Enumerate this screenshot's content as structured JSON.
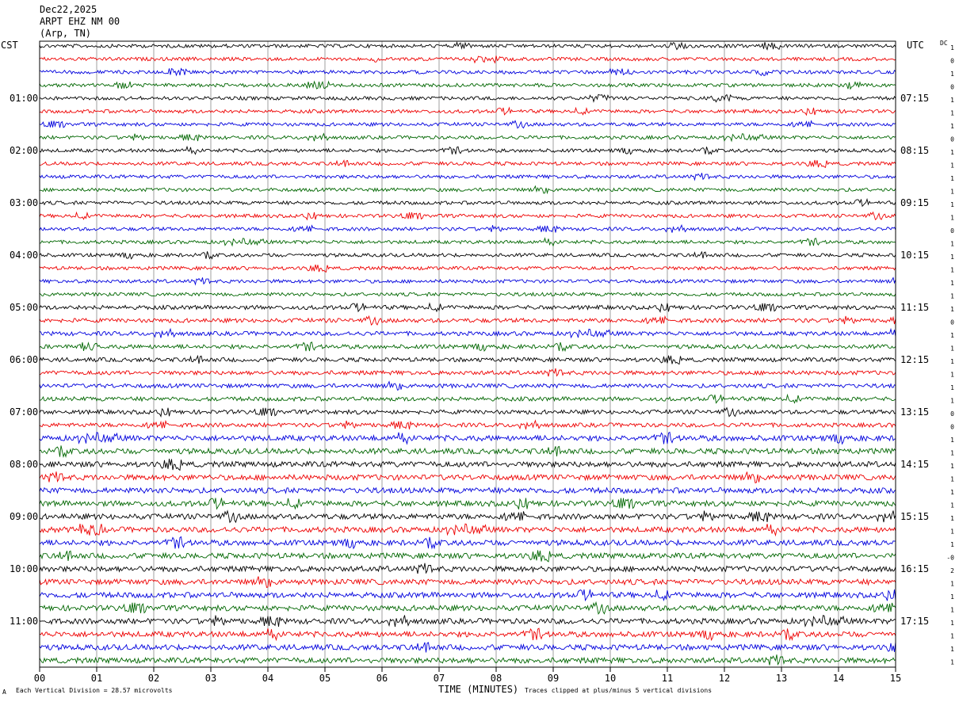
{
  "header": {
    "date": "Dec22,2025",
    "station": "ARPT EHZ NM 00",
    "location": "(Arp, TN)"
  },
  "left_zone": "CST",
  "right_zone": "UTC",
  "dc_label": "DC",
  "footer": {
    "scale": "Each Vertical Division =   28.57 microvolts",
    "clip": "Traces clipped at plus/minus 5 vertical divisions",
    "corner_mark": "A"
  },
  "chart_data": {
    "type": "line",
    "title": "",
    "xlabel": "TIME (MINUTES)",
    "ylabel": "",
    "xlim": [
      0,
      15
    ],
    "x_ticks": [
      "00",
      "01",
      "02",
      "03",
      "04",
      "05",
      "06",
      "07",
      "08",
      "09",
      "10",
      "11",
      "12",
      "13",
      "14",
      "15"
    ],
    "trace_colors": [
      "#000000",
      "#ee0000",
      "#0000dd",
      "#006600"
    ],
    "trace_count": 48,
    "minutes_per_trace": 15,
    "left_time_labels": [
      "01:00",
      "02:00",
      "03:00",
      "04:00",
      "05:00",
      "06:00",
      "07:00",
      "08:00",
      "09:00",
      "10:00",
      "11:00"
    ],
    "right_time_labels": [
      "07:15",
      "08:15",
      "09:15",
      "10:15",
      "11:15",
      "12:15",
      "13:15",
      "14:15",
      "15:15",
      "16:15",
      "17:15"
    ],
    "dc_offsets": [
      "1",
      "0",
      "1",
      "0",
      "1",
      "1",
      "1",
      "0",
      "1",
      "1",
      "1",
      "1",
      "1",
      "1",
      "0",
      "1",
      "1",
      "1",
      "1",
      "1",
      "1",
      "0",
      "1",
      "1",
      "1",
      "1",
      "1",
      "1",
      "0",
      "0",
      "1",
      "1",
      "1",
      "1",
      "1",
      "1",
      "1",
      "1",
      "1",
      "-0",
      "2",
      "1",
      "1",
      "1",
      "1",
      "1",
      "1",
      "1"
    ],
    "clip_divisions": 5,
    "microvolts_per_division": 28.57
  }
}
